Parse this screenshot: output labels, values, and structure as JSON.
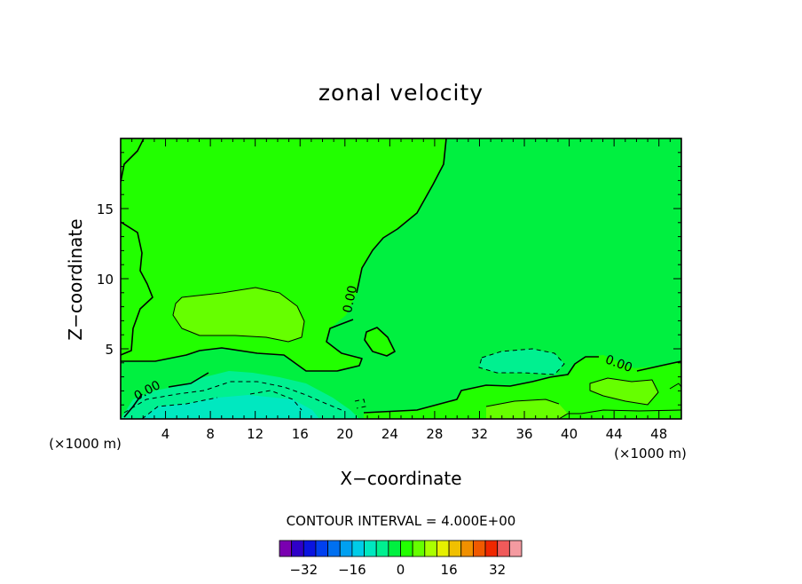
{
  "chart_data": {
    "type": "heatmap",
    "title": "zonal velocity",
    "xlabel": "X−coordinate",
    "ylabel": "Z−coordinate",
    "x_unit_label_left": "(×1000 m)",
    "x_unit_label_right": "(×1000 m)",
    "xlim": [
      0,
      50
    ],
    "ylim": [
      0,
      20
    ],
    "x_ticks": [
      4,
      8,
      12,
      16,
      20,
      24,
      28,
      32,
      36,
      40,
      44,
      48
    ],
    "y_ticks": [
      5,
      10,
      15
    ],
    "contour_label": "0.00",
    "contour_interval_text": "CONTOUR INTERVAL = 4.000E+00",
    "colorbar": {
      "ticks": [
        -32,
        -16,
        0,
        16,
        32
      ],
      "tick_labels": [
        "−32",
        "−16",
        "0",
        "16",
        "32"
      ],
      "levels": [
        -36,
        -32,
        -28,
        -24,
        -20,
        -16,
        -12,
        -8,
        -4,
        0,
        4,
        8,
        12,
        16,
        20,
        24,
        28,
        32,
        36
      ],
      "colors": [
        "#7a00b0",
        "#2f00c8",
        "#0a14e0",
        "#0040f0",
        "#0070f0",
        "#00a0f0",
        "#00cce8",
        "#00e8c0",
        "#00f090",
        "#00f040",
        "#22ff00",
        "#66ff00",
        "#aaff00",
        "#e6f000",
        "#f0c000",
        "#f09000",
        "#f05a00",
        "#f02800",
        "#f05a5a",
        "#f49aa0"
      ]
    },
    "fill_colors": {
      "background": "#00f040",
      "positive_weak": "#22ff00",
      "positive_mid": "#66ff00",
      "negative_weak": "#00f090",
      "negative_mid": "#00e8c0"
    }
  }
}
